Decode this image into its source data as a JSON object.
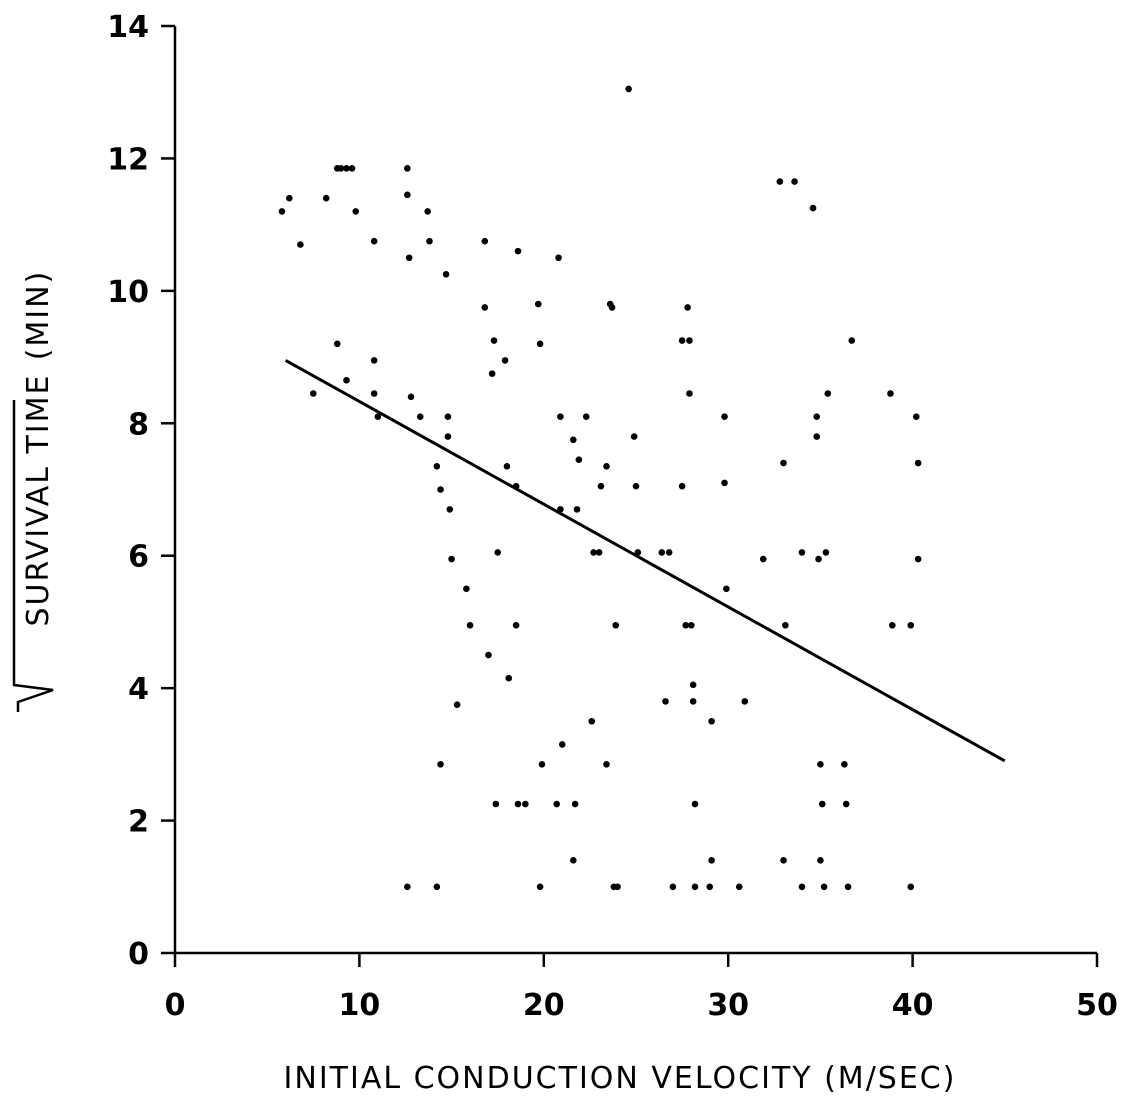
{
  "chart_data": {
    "type": "scatter",
    "title": "",
    "xlabel": "INITIAL CONDUCTION VELOCITY (M/SEC)",
    "ylabel_main": "SURVIVAL TIME",
    "ylabel_unit": "(MIN)",
    "xlim": [
      0,
      50
    ],
    "ylim": [
      0,
      14
    ],
    "x_ticks": [
      0,
      10,
      20,
      30,
      40,
      50
    ],
    "y_ticks": [
      0,
      2,
      4,
      6,
      8,
      10,
      12,
      14
    ],
    "grid": false,
    "legend": "none",
    "points": [
      [
        5.8,
        11.2
      ],
      [
        6.2,
        11.4
      ],
      [
        6.8,
        10.7
      ],
      [
        7.5,
        8.45
      ],
      [
        8.2,
        11.4
      ],
      [
        8.8,
        11.85
      ],
      [
        9.0,
        11.85
      ],
      [
        9.3,
        11.85
      ],
      [
        9.6,
        11.85
      ],
      [
        9.8,
        11.2
      ],
      [
        8.8,
        9.2
      ],
      [
        9.3,
        8.65
      ],
      [
        10.8,
        10.75
      ],
      [
        10.8,
        8.95
      ],
      [
        10.8,
        8.45
      ],
      [
        11.0,
        8.1
      ],
      [
        12.6,
        11.85
      ],
      [
        12.6,
        11.45
      ],
      [
        12.7,
        10.5
      ],
      [
        12.8,
        8.4
      ],
      [
        13.3,
        8.1
      ],
      [
        13.7,
        11.2
      ],
      [
        13.8,
        10.75
      ],
      [
        14.2,
        7.35
      ],
      [
        14.4,
        7.0
      ],
      [
        14.7,
        10.25
      ],
      [
        14.8,
        8.1
      ],
      [
        14.8,
        7.8
      ],
      [
        14.9,
        6.7
      ],
      [
        15.0,
        5.95
      ],
      [
        15.3,
        3.75
      ],
      [
        15.8,
        5.5
      ],
      [
        16.0,
        4.95
      ],
      [
        16.8,
        10.75
      ],
      [
        16.8,
        9.75
      ],
      [
        17.0,
        4.5
      ],
      [
        17.2,
        8.75
      ],
      [
        17.3,
        9.25
      ],
      [
        17.5,
        6.05
      ],
      [
        17.9,
        8.95
      ],
      [
        18.0,
        7.35
      ],
      [
        18.1,
        4.15
      ],
      [
        18.5,
        7.05
      ],
      [
        18.5,
        4.95
      ],
      [
        18.6,
        10.6
      ],
      [
        19.7,
        9.8
      ],
      [
        19.8,
        9.2
      ],
      [
        21.6,
        7.75
      ],
      [
        20.8,
        10.5
      ],
      [
        20.9,
        8.1
      ],
      [
        20.9,
        6.7
      ],
      [
        21.8,
        6.7
      ],
      [
        21.9,
        7.45
      ],
      [
        22.3,
        8.1
      ],
      [
        22.6,
        3.5
      ],
      [
        22.7,
        6.05
      ],
      [
        23.0,
        6.05
      ],
      [
        23.1,
        7.05
      ],
      [
        23.4,
        7.35
      ],
      [
        23.6,
        9.8
      ],
      [
        23.7,
        9.75
      ],
      [
        23.9,
        4.95
      ],
      [
        24.6,
        13.05
      ],
      [
        24.9,
        7.8
      ],
      [
        25.0,
        7.05
      ],
      [
        25.1,
        6.05
      ],
      [
        26.4,
        6.05
      ],
      [
        26.8,
        6.05
      ],
      [
        27.5,
        9.25
      ],
      [
        27.5,
        7.05
      ],
      [
        27.7,
        4.95
      ],
      [
        27.8,
        9.75
      ],
      [
        27.9,
        9.25
      ],
      [
        27.9,
        8.45
      ],
      [
        28.0,
        4.95
      ],
      [
        28.1,
        4.05
      ],
      [
        28.1,
        3.8
      ],
      [
        28.2,
        2.25
      ],
      [
        26.6,
        3.8
      ],
      [
        29.1,
        3.5
      ],
      [
        29.8,
        8.1
      ],
      [
        29.8,
        7.1
      ],
      [
        29.9,
        5.5
      ],
      [
        30.9,
        3.8
      ],
      [
        31.9,
        5.95
      ],
      [
        32.8,
        11.65
      ],
      [
        33.1,
        4.95
      ],
      [
        33.0,
        7.4
      ],
      [
        33.6,
        11.65
      ],
      [
        34.0,
        6.05
      ],
      [
        34.6,
        11.25
      ],
      [
        34.8,
        8.1
      ],
      [
        34.8,
        7.8
      ],
      [
        34.9,
        5.95
      ],
      [
        35.3,
        6.05
      ],
      [
        35.4,
        8.45
      ],
      [
        36.7,
        9.25
      ],
      [
        38.8,
        8.45
      ],
      [
        38.9,
        4.95
      ],
      [
        39.9,
        4.95
      ],
      [
        40.2,
        8.1
      ],
      [
        40.3,
        7.4
      ],
      [
        40.3,
        5.95
      ],
      [
        35.0,
        2.85
      ],
      [
        35.1,
        2.25
      ],
      [
        36.3,
        2.85
      ],
      [
        36.4,
        2.25
      ],
      [
        14.4,
        2.85
      ],
      [
        17.4,
        2.25
      ],
      [
        18.6,
        2.25
      ],
      [
        19.0,
        2.25
      ],
      [
        19.9,
        2.85
      ],
      [
        20.7,
        2.25
      ],
      [
        21.0,
        3.15
      ],
      [
        21.7,
        2.25
      ],
      [
        23.4,
        2.85
      ],
      [
        21.6,
        1.4
      ],
      [
        29.1,
        1.4
      ],
      [
        33.0,
        1.4
      ],
      [
        35.0,
        1.4
      ],
      [
        12.6,
        1.0
      ],
      [
        14.2,
        1.0
      ],
      [
        19.8,
        1.0
      ],
      [
        23.8,
        1.0
      ],
      [
        24.0,
        1.0
      ],
      [
        27.0,
        1.0
      ],
      [
        28.2,
        1.0
      ],
      [
        29.0,
        1.0
      ],
      [
        30.6,
        1.0
      ],
      [
        34.0,
        1.0
      ],
      [
        35.2,
        1.0
      ],
      [
        36.5,
        1.0
      ],
      [
        39.9,
        1.0
      ]
    ],
    "fit_line": [
      [
        6.0,
        8.95
      ],
      [
        45.0,
        2.9
      ]
    ]
  }
}
